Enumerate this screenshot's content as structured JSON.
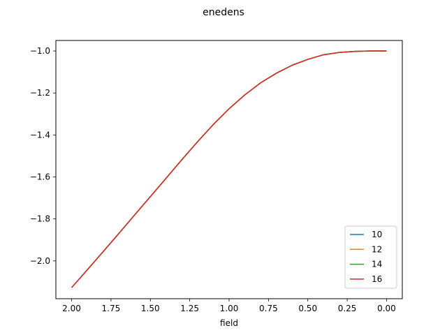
{
  "chart_data": {
    "type": "line",
    "title": "enedens",
    "xlabel": "field",
    "ylabel": "",
    "x_inverted": true,
    "xlim": [
      2.1,
      -0.1
    ],
    "ylim": [
      -2.18,
      -0.95
    ],
    "x_ticks": [
      2.0,
      1.75,
      1.5,
      1.25,
      1.0,
      0.75,
      0.5,
      0.25,
      0.0
    ],
    "x_tick_labels": [
      "2.00",
      "1.75",
      "1.50",
      "1.25",
      "1.00",
      "0.75",
      "0.50",
      "0.25",
      "0.00"
    ],
    "y_ticks": [
      -1.0,
      -1.2,
      -1.4,
      -1.6,
      -1.8,
      -2.0
    ],
    "y_tick_labels": [
      "−1.0",
      "−1.2",
      "−1.4",
      "−1.6",
      "−1.8",
      "−2.0"
    ],
    "grid": false,
    "legend_position": "lower right",
    "x": [
      2.0,
      1.9,
      1.8,
      1.7,
      1.6,
      1.5,
      1.4,
      1.3,
      1.2,
      1.1,
      1.0,
      0.9,
      0.8,
      0.7,
      0.6,
      0.5,
      0.4,
      0.3,
      0.2,
      0.1,
      0.0
    ],
    "series": [
      {
        "name": "10",
        "color": "#1f77b4",
        "values": [
          -2.127,
          -2.042,
          -1.956,
          -1.869,
          -1.781,
          -1.694,
          -1.606,
          -1.518,
          -1.432,
          -1.35,
          -1.275,
          -1.209,
          -1.152,
          -1.106,
          -1.068,
          -1.04,
          -1.018,
          -1.007,
          -1.002,
          -1.0,
          -1.0
        ]
      },
      {
        "name": "12",
        "color": "#ff7f0e",
        "values": [
          -2.127,
          -2.042,
          -1.956,
          -1.869,
          -1.781,
          -1.694,
          -1.606,
          -1.518,
          -1.432,
          -1.35,
          -1.275,
          -1.209,
          -1.152,
          -1.106,
          -1.068,
          -1.04,
          -1.018,
          -1.007,
          -1.002,
          -1.0,
          -1.0
        ]
      },
      {
        "name": "14",
        "color": "#2ca02c",
        "values": [
          -2.127,
          -2.042,
          -1.956,
          -1.869,
          -1.781,
          -1.694,
          -1.606,
          -1.518,
          -1.432,
          -1.35,
          -1.275,
          -1.209,
          -1.152,
          -1.106,
          -1.068,
          -1.04,
          -1.018,
          -1.007,
          -1.002,
          -1.0,
          -1.0
        ]
      },
      {
        "name": "16",
        "color": "#d62728",
        "values": [
          -2.127,
          -2.042,
          -1.956,
          -1.869,
          -1.781,
          -1.694,
          -1.606,
          -1.518,
          -1.432,
          -1.35,
          -1.275,
          -1.209,
          -1.152,
          -1.106,
          -1.068,
          -1.04,
          -1.018,
          -1.007,
          -1.002,
          -1.0,
          -1.0
        ]
      }
    ]
  }
}
